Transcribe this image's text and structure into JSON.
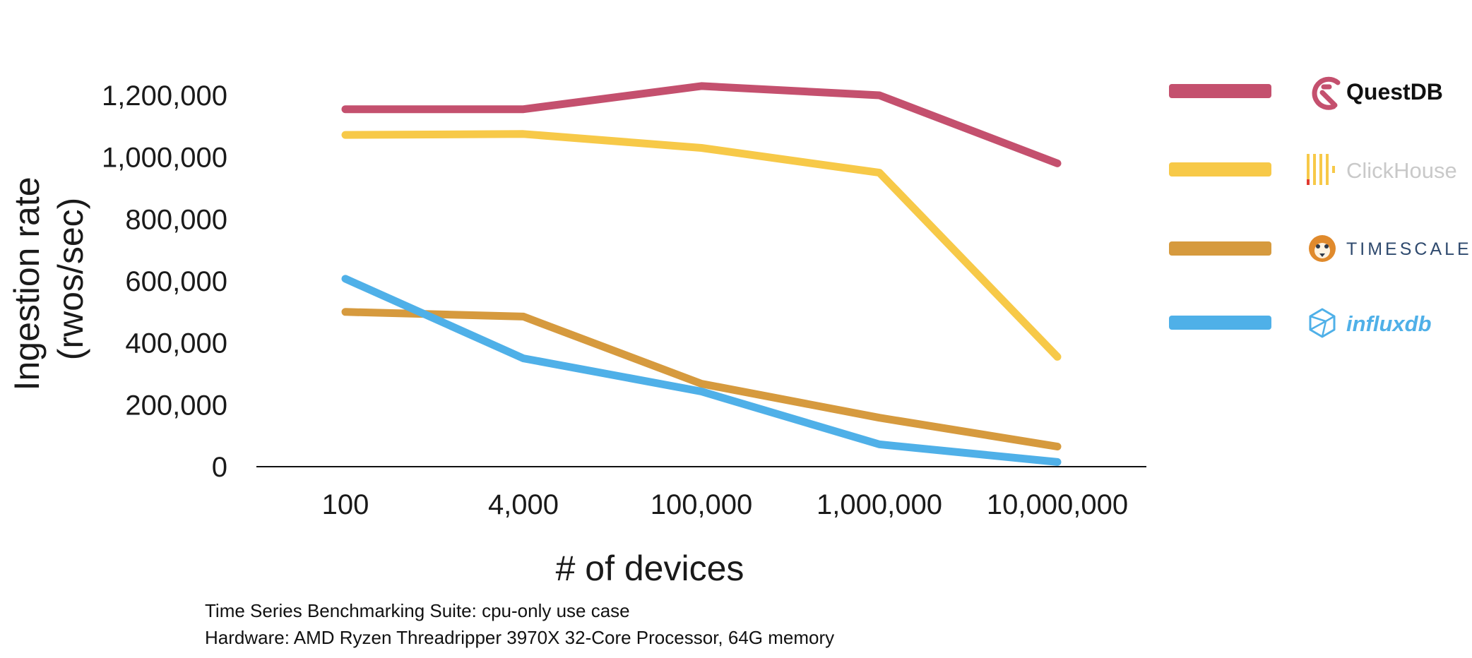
{
  "chart_data": {
    "type": "line",
    "xlabel": "# of devices",
    "ylabel": [
      "Ingestion rate",
      "(rwos/sec)"
    ],
    "categories": [
      "100",
      "4,000",
      "100,000",
      "1,000,000",
      "10,000,000"
    ],
    "ylim": [
      0,
      1300000
    ],
    "yticks": [
      0,
      200000,
      400000,
      600000,
      800000,
      1000000,
      1200000
    ],
    "ytick_labels": [
      "0",
      "200,000",
      "400,000",
      "600,000",
      "800,000",
      "1,000,000",
      "1,200,000"
    ],
    "grid": false,
    "legend_position": "right",
    "series": [
      {
        "name": "QuestDB",
        "color": "#c4506e",
        "text_color": "#111111",
        "icon": "questdb-logo-icon",
        "values": [
          1155000,
          1155000,
          1230000,
          1200000,
          980000
        ]
      },
      {
        "name": "ClickHouse",
        "color": "#f7c948",
        "text_color": "#c9c9c9",
        "icon": "clickhouse-logo-icon",
        "values": [
          1072000,
          1075000,
          1030000,
          950000,
          355000
        ]
      },
      {
        "name": "TIMESCALE",
        "color": "#d69a3e",
        "text_color": "#2f4a6e",
        "icon": "timescale-logo-icon",
        "values": [
          500000,
          485000,
          268000,
          158000,
          65000
        ]
      },
      {
        "name": "influxdb",
        "color": "#4fb0e8",
        "text_color": "#4fb0e8",
        "icon": "influxdb-logo-icon",
        "values": [
          607000,
          350000,
          243000,
          72000,
          15000
        ]
      }
    ]
  },
  "captions": [
    "Time Series Benchmarking Suite: cpu-only use case",
    "Hardware: AMD Ryzen Threadripper 3970X 32-Core Processor, 64G memory"
  ]
}
